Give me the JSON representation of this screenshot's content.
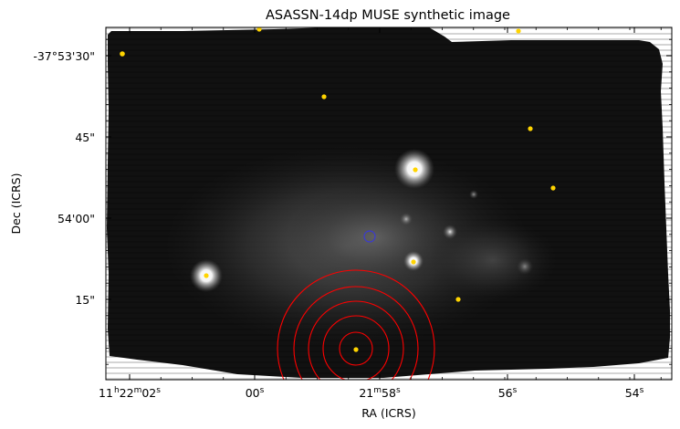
{
  "figure": {
    "title": "ASASSN-14dp MUSE synthetic image",
    "xlabel": "RA (ICRS)",
    "ylabel": "Dec (ICRS)",
    "x_ticks": [
      {
        "h": "11",
        "m": "22",
        "s": "02"
      },
      {
        "s": "00"
      },
      {
        "m": "21",
        "s": "58"
      },
      {
        "s": "56"
      },
      {
        "s": "54"
      }
    ],
    "y_ticks": [
      "-37°53'30\"",
      "45\"",
      "54'00\"",
      "15\""
    ],
    "colors": {
      "background": "#ffffff",
      "image_dark": "#111111",
      "nebula": "#4a4a4a",
      "marker_yellow": "#ffd400",
      "circle_red": "#ff0000",
      "circle_blue": "#3a3ad0"
    }
  }
}
